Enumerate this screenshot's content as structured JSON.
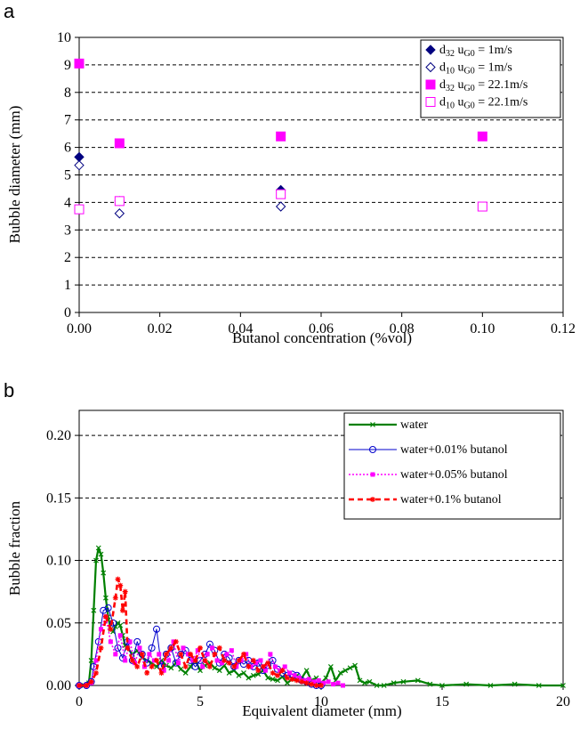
{
  "chart_data": [
    {
      "panel_label": "a",
      "type": "scatter",
      "xlabel": "Butanol concentration (%vol)",
      "ylabel": "Bubble diameter (mm)",
      "xlim": [
        0,
        0.12
      ],
      "ylim": [
        0,
        10
      ],
      "x_ticks": [
        "0.00",
        "0.02",
        "0.04",
        "0.06",
        "0.08",
        "0.10",
        "0.12"
      ],
      "y_ticks": [
        "0",
        "1",
        "2",
        "3",
        "4",
        "5",
        "6",
        "7",
        "8",
        "9",
        "10"
      ],
      "grid": "horizontal dashed",
      "legend_position": "top-right",
      "series": [
        {
          "legend_base": "d",
          "legend_sub1": "32",
          "legend_mid": " u",
          "legend_sub2": "G0",
          "legend_tail": " = 1m/s",
          "marker": "diamond-filled",
          "color": "#000080",
          "x": [
            0,
            0.01,
            0.05
          ],
          "y": [
            5.65,
            4.05,
            4.45
          ]
        },
        {
          "legend_base": "d",
          "legend_sub1": "10",
          "legend_mid": " u",
          "legend_sub2": "G0",
          "legend_tail": " = 1m/s",
          "marker": "diamond-open",
          "color": "#000080",
          "x": [
            0,
            0.01,
            0.05
          ],
          "y": [
            5.35,
            3.6,
            3.85
          ]
        },
        {
          "legend_base": "d",
          "legend_sub1": "32",
          "legend_mid": " u",
          "legend_sub2": "G0",
          "legend_tail": " = 22.1m/s",
          "marker": "square-filled",
          "color": "#ff00ff",
          "x": [
            0,
            0.01,
            0.05,
            0.1
          ],
          "y": [
            9.05,
            6.15,
            6.4,
            6.4
          ]
        },
        {
          "legend_base": "d",
          "legend_sub1": "10",
          "legend_mid": " u",
          "legend_sub2": "G0",
          "legend_tail": " = 22.1m/s",
          "marker": "square-open",
          "color": "#ff00ff",
          "x": [
            0,
            0.01,
            0.05,
            0.1
          ],
          "y": [
            3.75,
            4.05,
            4.3,
            3.85
          ]
        }
      ]
    },
    {
      "panel_label": "b",
      "type": "line",
      "xlabel": "Equivalent diameter (mm)",
      "ylabel": "Bubble fraction",
      "xlim": [
        0,
        20
      ],
      "ylim": [
        0,
        0.22
      ],
      "x_ticks": [
        "0",
        "5",
        "10",
        "15",
        "20"
      ],
      "y_ticks": [
        "0.00",
        "0.05",
        "0.10",
        "0.15",
        "0.20"
      ],
      "grid": "horizontal dashed",
      "legend_position": "top-right",
      "series": [
        {
          "name": "water",
          "color": "#008000",
          "style": "solid",
          "marker": "x",
          "x": [
            0,
            0.2,
            0.4,
            0.5,
            0.6,
            0.7,
            0.8,
            0.9,
            1.0,
            1.1,
            1.2,
            1.3,
            1.4,
            1.5,
            1.6,
            1.7,
            1.8,
            1.9,
            2.0,
            2.2,
            2.4,
            2.6,
            2.8,
            3.0,
            3.2,
            3.4,
            3.6,
            3.8,
            4.0,
            4.2,
            4.4,
            4.6,
            4.8,
            5.0,
            5.2,
            5.4,
            5.6,
            5.8,
            6.0,
            6.2,
            6.4,
            6.6,
            6.8,
            7.0,
            7.2,
            7.4,
            7.6,
            7.8,
            8.0,
            8.2,
            8.4,
            8.6,
            8.8,
            9.0,
            9.2,
            9.4,
            9.6,
            9.8,
            10.0,
            10.2,
            10.4,
            10.6,
            10.8,
            11.0,
            11.2,
            11.4,
            11.6,
            11.8,
            12.0,
            12.3,
            12.6,
            13.0,
            13.4,
            14.0,
            14.5,
            15.0,
            16.0,
            17.0,
            18.0,
            19.0,
            20.0
          ],
          "y": [
            0,
            0,
            0.002,
            0.02,
            0.06,
            0.1,
            0.11,
            0.105,
            0.09,
            0.07,
            0.055,
            0.045,
            0.043,
            0.047,
            0.05,
            0.048,
            0.04,
            0.032,
            0.03,
            0.025,
            0.028,
            0.022,
            0.02,
            0.018,
            0.015,
            0.02,
            0.016,
            0.014,
            0.018,
            0.013,
            0.01,
            0.015,
            0.02,
            0.012,
            0.016,
            0.018,
            0.014,
            0.012,
            0.016,
            0.01,
            0.012,
            0.008,
            0.01,
            0.006,
            0.008,
            0.009,
            0.012,
            0.006,
            0.005,
            0.004,
            0.007,
            0.002,
            0.005,
            0.008,
            0.006,
            0.012,
            0.004,
            0.006,
            0.002,
            0.006,
            0.015,
            0.004,
            0.01,
            0.012,
            0.014,
            0.016,
            0.004,
            0.002,
            0.003,
            0,
            0,
            0.002,
            0.003,
            0.004,
            0.001,
            0,
            0.001,
            0,
            0.001,
            0,
            0
          ]
        },
        {
          "name": "water+0.01% butanol",
          "color": "#0000cc",
          "style": "thin",
          "marker": "circle",
          "x": [
            0,
            0.3,
            0.5,
            0.6,
            0.8,
            1.0,
            1.2,
            1.4,
            1.6,
            1.8,
            2.0,
            2.2,
            2.4,
            2.6,
            2.8,
            3.0,
            3.2,
            3.4,
            3.6,
            3.8,
            4.0,
            4.2,
            4.4,
            4.6,
            4.8,
            5.0,
            5.2,
            5.4,
            5.6,
            5.8,
            6.0,
            6.2,
            6.4,
            6.6,
            6.8,
            7.0,
            7.2,
            7.4,
            7.6,
            7.8,
            8.0,
            8.2,
            8.4,
            8.6,
            8.8,
            9.0,
            9.2,
            9.4,
            9.6,
            9.8,
            10.0
          ],
          "y": [
            0,
            0,
            0.003,
            0.015,
            0.035,
            0.06,
            0.062,
            0.05,
            0.03,
            0.022,
            0.035,
            0.02,
            0.035,
            0.025,
            0.018,
            0.03,
            0.045,
            0.015,
            0.025,
            0.03,
            0.018,
            0.025,
            0.028,
            0.02,
            0.015,
            0.02,
            0.025,
            0.033,
            0.028,
            0.018,
            0.025,
            0.022,
            0.015,
            0.02,
            0.017,
            0.02,
            0.015,
            0.018,
            0.012,
            0.016,
            0.02,
            0.013,
            0.01,
            0.008,
            0.009,
            0.008,
            0.004,
            0.003,
            0.001,
            0,
            0
          ]
        },
        {
          "name": "water+0.05% butanol",
          "color": "#ff00ff",
          "style": "dotted",
          "marker": "square",
          "x": [
            0,
            0.3,
            0.5,
            0.7,
            0.9,
            1.1,
            1.3,
            1.5,
            1.7,
            1.9,
            2.1,
            2.3,
            2.5,
            2.7,
            2.9,
            3.1,
            3.3,
            3.5,
            3.7,
            3.9,
            4.1,
            4.3,
            4.5,
            4.7,
            4.9,
            5.1,
            5.3,
            5.5,
            5.7,
            5.9,
            6.1,
            6.3,
            6.5,
            6.7,
            6.9,
            7.1,
            7.3,
            7.5,
            7.7,
            7.9,
            8.1,
            8.3,
            8.5,
            8.7,
            8.9,
            9.1,
            9.3,
            9.5,
            9.7,
            9.9,
            10.1,
            10.3,
            10.5,
            10.7,
            10.9
          ],
          "y": [
            0,
            0,
            0.002,
            0.02,
            0.045,
            0.055,
            0.035,
            0.025,
            0.04,
            0.02,
            0.035,
            0.018,
            0.03,
            0.015,
            0.025,
            0.02,
            0.025,
            0.012,
            0.02,
            0.035,
            0.018,
            0.03,
            0.025,
            0.02,
            0.028,
            0.015,
            0.025,
            0.03,
            0.02,
            0.018,
            0.025,
            0.028,
            0.015,
            0.02,
            0.025,
            0.015,
            0.018,
            0.02,
            0.012,
            0.025,
            0.015,
            0.012,
            0.015,
            0.01,
            0.008,
            0.006,
            0.004,
            0.005,
            0.003,
            0.004,
            0.002,
            0.003,
            0.001,
            0.002,
            0
          ]
        },
        {
          "name": "water+0.1% butanol",
          "color": "#ff0000",
          "style": "dashed",
          "marker": "star",
          "x": [
            0,
            0.3,
            0.5,
            0.7,
            0.9,
            1.1,
            1.3,
            1.5,
            1.6,
            1.7,
            1.8,
            1.9,
            2.0,
            2.2,
            2.4,
            2.6,
            2.8,
            3.0,
            3.2,
            3.4,
            3.6,
            3.8,
            4.0,
            4.2,
            4.4,
            4.6,
            4.8,
            5.0,
            5.2,
            5.4,
            5.6,
            5.8,
            6.0,
            6.2,
            6.4,
            6.6,
            6.8,
            7.0,
            7.2,
            7.4,
            7.6,
            7.8,
            8.0,
            8.2,
            8.4,
            8.6,
            8.8,
            9.0,
            9.2,
            9.4,
            9.6,
            9.8,
            10.0
          ],
          "y": [
            0,
            0,
            0.003,
            0.01,
            0.03,
            0.055,
            0.045,
            0.07,
            0.085,
            0.08,
            0.06,
            0.075,
            0.03,
            0.02,
            0.015,
            0.025,
            0.01,
            0.015,
            0.02,
            0.01,
            0.025,
            0.03,
            0.035,
            0.025,
            0.015,
            0.025,
            0.02,
            0.03,
            0.02,
            0.015,
            0.025,
            0.03,
            0.02,
            0.018,
            0.015,
            0.02,
            0.025,
            0.015,
            0.02,
            0.012,
            0.015,
            0.018,
            0.01,
            0.008,
            0.012,
            0.006,
            0.005,
            0.004,
            0.003,
            0.002,
            0.001,
            0,
            0
          ]
        }
      ]
    }
  ]
}
